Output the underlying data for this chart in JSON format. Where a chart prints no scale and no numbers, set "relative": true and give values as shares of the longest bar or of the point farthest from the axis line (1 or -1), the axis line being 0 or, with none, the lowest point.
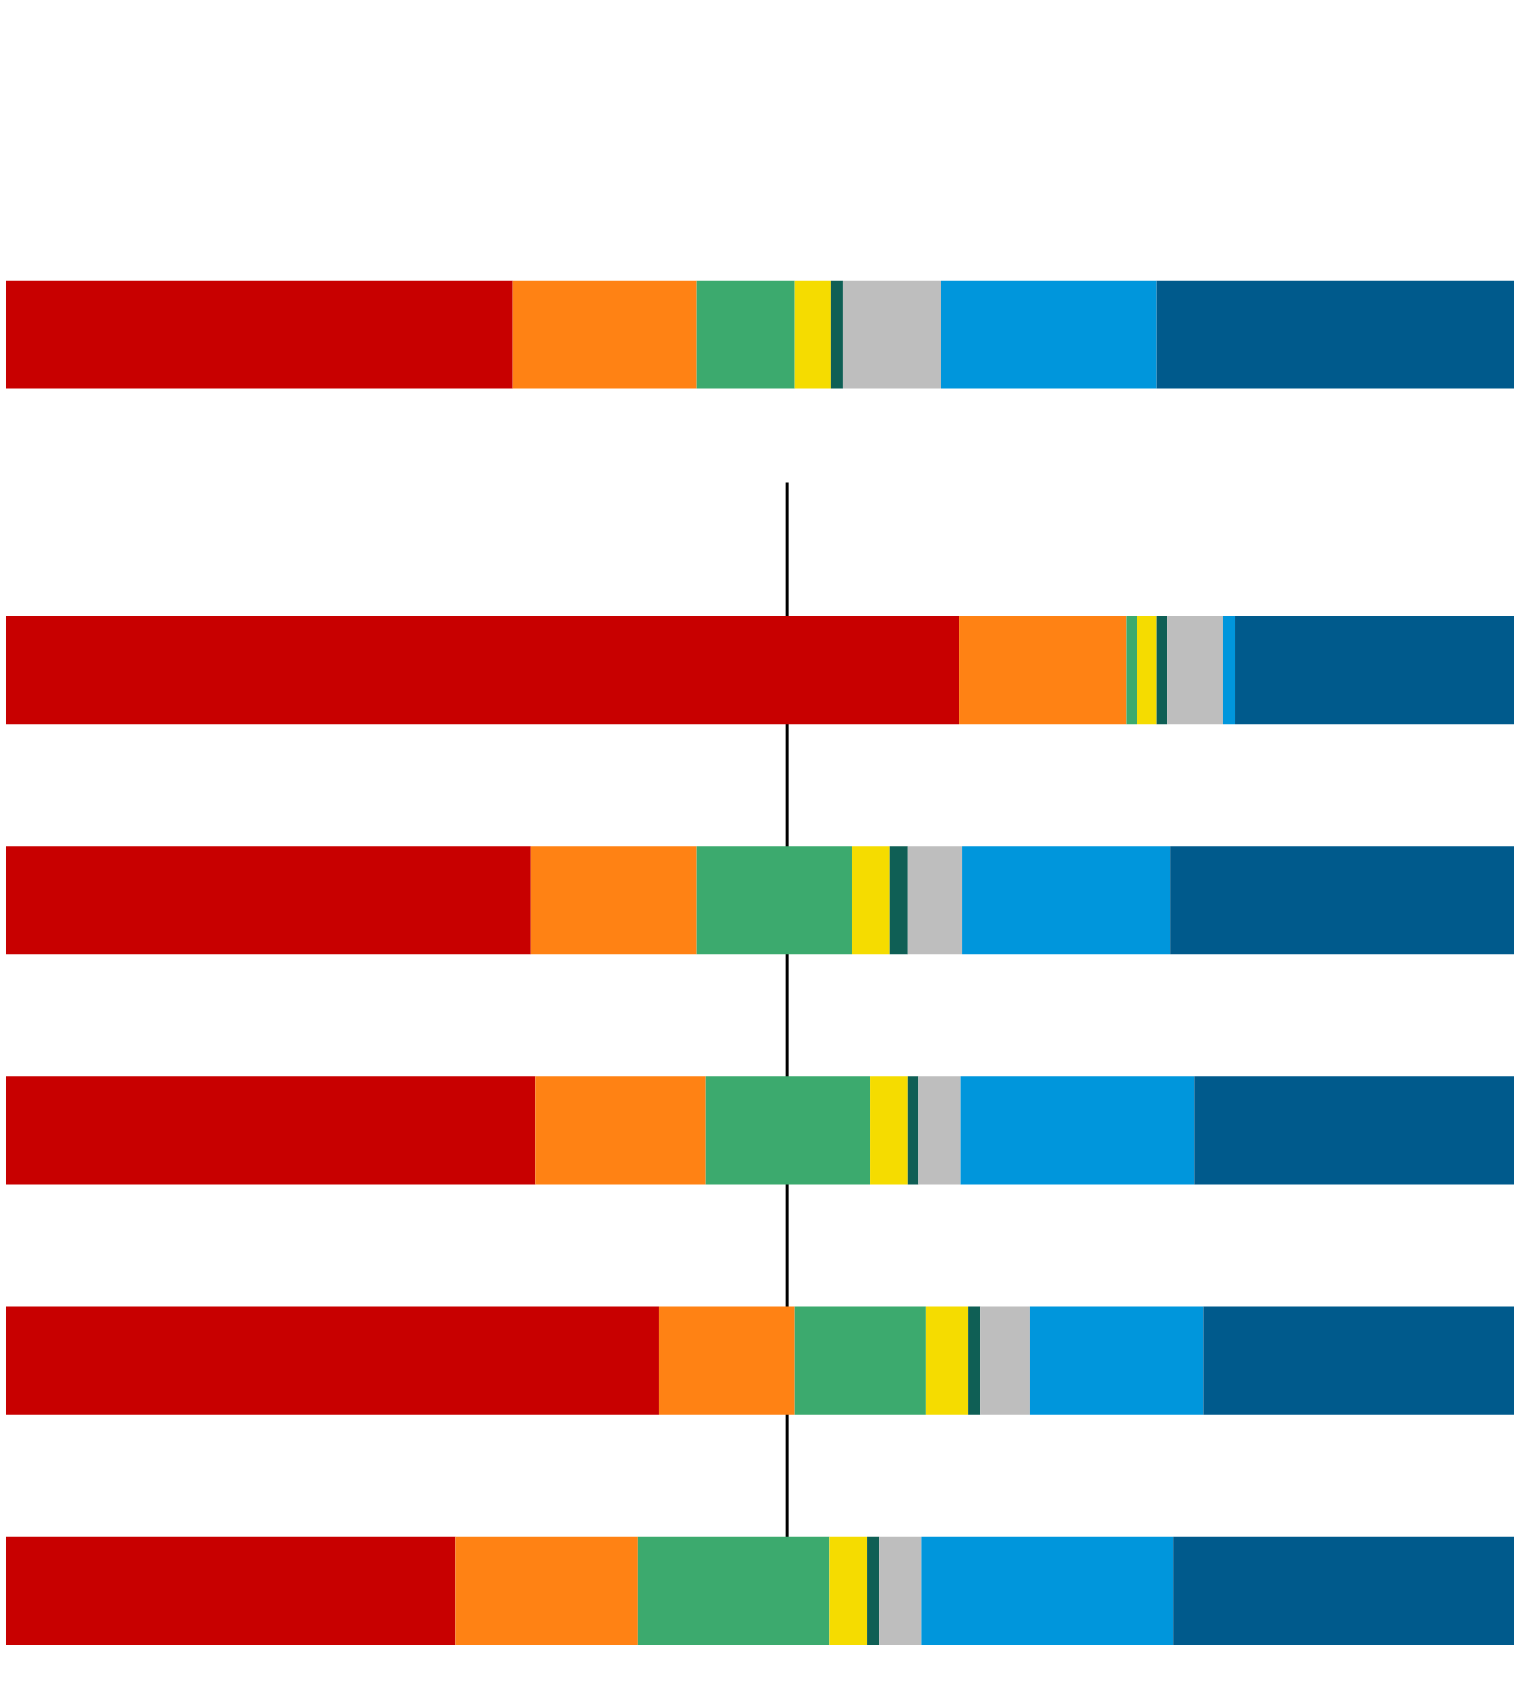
{
  "chart_data": [
    {
      "type": "bar",
      "orientation": "horizontal",
      "stacked": true,
      "relative": true,
      "categories": [
        null
      ],
      "series": [
        {
          "color": "#c80000",
          "values": [
            0.336
          ]
        },
        {
          "color": "#ff8214",
          "values": [
            0.122
          ]
        },
        {
          "color": "#3caa6e",
          "values": [
            0.065
          ]
        },
        {
          "color": "#f5dc00",
          "values": [
            0.024
          ]
        },
        {
          "color": "#0f5f55",
          "values": [
            0.008
          ]
        },
        {
          "color": "#bebebe",
          "values": [
            0.065
          ]
        },
        {
          "color": "#0096dc",
          "values": [
            0.143
          ]
        },
        {
          "color": "#005a8c",
          "values": [
            0.237
          ]
        }
      ]
    },
    {
      "type": "bar",
      "orientation": "horizontal",
      "stacked": true,
      "relative": true,
      "categories": [
        null,
        null,
        null,
        null,
        null
      ],
      "ref_lines": [
        {
          "axis": "x",
          "value": 0.518,
          "color": "#000000"
        }
      ],
      "series": [
        {
          "color": "#c80000",
          "values": [
            0.632,
            0.348,
            0.351,
            0.433,
            0.298
          ]
        },
        {
          "color": "#ff8214",
          "values": [
            0.111,
            0.11,
            0.113,
            0.09,
            0.121
          ]
        },
        {
          "color": "#3caa6e",
          "values": [
            0.007,
            0.103,
            0.109,
            0.087,
            0.127
          ]
        },
        {
          "color": "#f5dc00",
          "values": [
            0.013,
            0.025,
            0.025,
            0.028,
            0.025
          ]
        },
        {
          "color": "#0f5f55",
          "values": [
            0.007,
            0.012,
            0.007,
            0.008,
            0.008
          ]
        },
        {
          "color": "#bebebe",
          "values": [
            0.037,
            0.036,
            0.028,
            0.033,
            0.028
          ]
        },
        {
          "color": "#0096dc",
          "values": [
            0.008,
            0.138,
            0.155,
            0.115,
            0.167
          ]
        },
        {
          "color": "#005a8c",
          "values": [
            0.185,
            0.228,
            0.212,
            0.206,
            0.226
          ]
        }
      ]
    }
  ]
}
